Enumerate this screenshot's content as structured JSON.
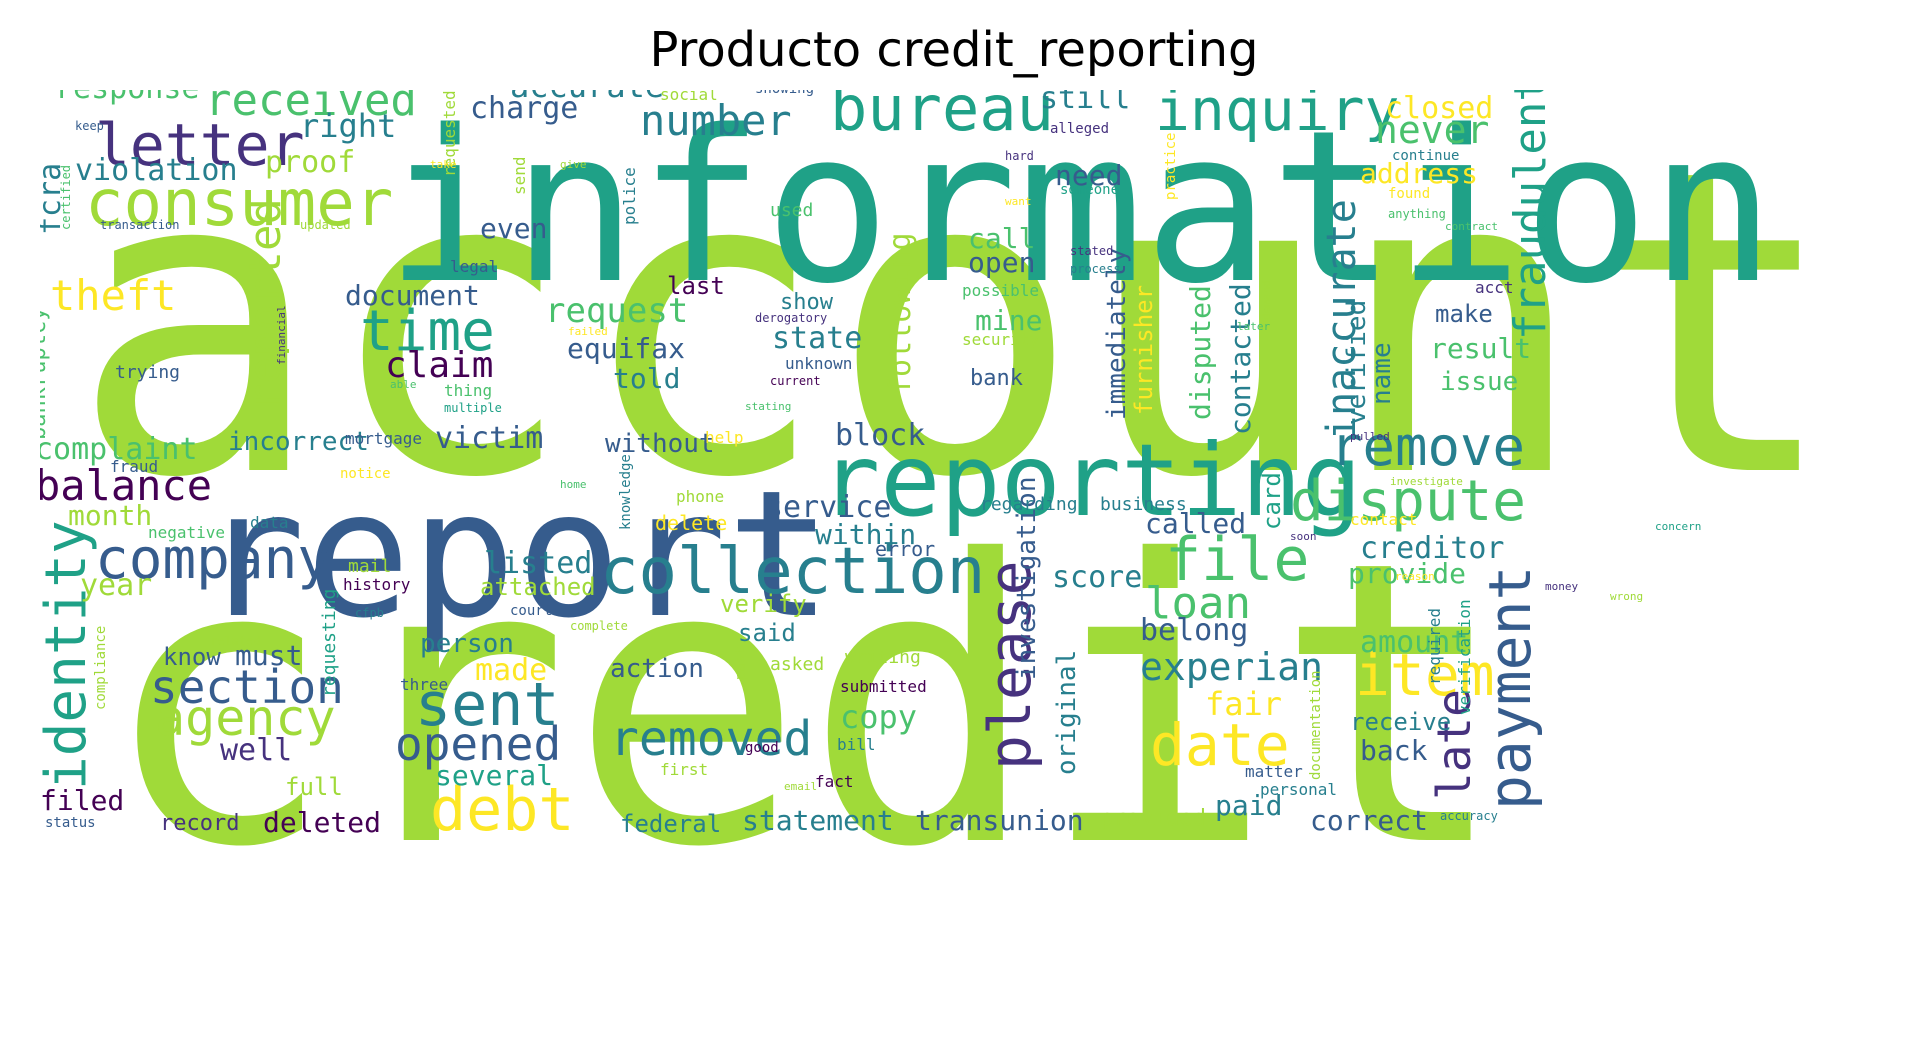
{
  "figure": {
    "title": "Producto credit_reporting",
    "palette": [
      "#440154",
      "#46327e",
      "#365c8d",
      "#277f8e",
      "#1fa187",
      "#4ac16d",
      "#a0da39",
      "#fde725"
    ],
    "words": [
      {
        "t": "account",
        "c": "#a0da39"
      },
      {
        "t": "credit",
        "c": "#a0da39"
      },
      {
        "t": "information",
        "c": "#1fa187"
      },
      {
        "t": "report",
        "c": "#365c8d"
      },
      {
        "t": "reporting",
        "c": "#1fa187"
      },
      {
        "t": "consumer",
        "c": "#a0da39"
      },
      {
        "t": "bureau",
        "c": "#1fa187"
      },
      {
        "t": "inquiry",
        "c": "#1fa187"
      },
      {
        "t": "letter",
        "c": "#46327e"
      },
      {
        "t": "received",
        "c": "#4ac16d"
      },
      {
        "t": "collection",
        "c": "#277f8e"
      },
      {
        "t": "company",
        "c": "#365c8d"
      },
      {
        "t": "identity",
        "c": "#1fa187"
      },
      {
        "t": "dispute",
        "c": "#4ac16d"
      },
      {
        "t": "file",
        "c": "#4ac16d"
      },
      {
        "t": "remove",
        "c": "#277f8e"
      },
      {
        "t": "time",
        "c": "#1fa187"
      },
      {
        "t": "sent",
        "c": "#277f8e"
      },
      {
        "t": "agency",
        "c": "#a0da39"
      },
      {
        "t": "debt",
        "c": "#fde725"
      },
      {
        "t": "date",
        "c": "#fde725"
      },
      {
        "t": "item",
        "c": "#fde725"
      },
      {
        "t": "payment",
        "c": "#365c8d"
      },
      {
        "t": "please",
        "c": "#46327e"
      },
      {
        "t": "removed",
        "c": "#277f8e"
      },
      {
        "t": "opened",
        "c": "#365c8d"
      },
      {
        "t": "section",
        "c": "#365c8d"
      },
      {
        "t": "balance",
        "c": "#440154"
      },
      {
        "t": "fraudulent",
        "c": "#1fa187"
      },
      {
        "t": "theft",
        "c": "#fde725"
      },
      {
        "t": "reported",
        "c": "#a0da39"
      },
      {
        "t": "number",
        "c": "#277f8e"
      },
      {
        "t": "never",
        "c": "#4ac16d"
      },
      {
        "t": "loan",
        "c": "#4ac16d"
      },
      {
        "t": "experian",
        "c": "#277f8e"
      },
      {
        "t": "late",
        "c": "#46327e"
      },
      {
        "t": "inaccurate",
        "c": "#277f8e"
      },
      {
        "t": "accurate",
        "c": "#277f8e"
      },
      {
        "t": "response",
        "c": "#4ac16d"
      },
      {
        "t": "right",
        "c": "#277f8e"
      },
      {
        "t": "charge",
        "c": "#365c8d"
      },
      {
        "t": "still",
        "c": "#277f8e"
      },
      {
        "t": "closed",
        "c": "#fde725"
      },
      {
        "t": "violation",
        "c": "#277f8e"
      },
      {
        "t": "proof",
        "c": "#a0da39"
      },
      {
        "t": "need",
        "c": "#365c8d"
      },
      {
        "t": "address",
        "c": "#fde725"
      },
      {
        "t": "fcra",
        "c": "#277f8e"
      },
      {
        "t": "even",
        "c": "#365c8d"
      },
      {
        "t": "call",
        "c": "#4ac16d"
      },
      {
        "t": "open",
        "c": "#365c8d"
      },
      {
        "t": "document",
        "c": "#365c8d"
      },
      {
        "t": "request",
        "c": "#4ac16d"
      },
      {
        "t": "last",
        "c": "#440154"
      },
      {
        "t": "show",
        "c": "#277f8e"
      },
      {
        "t": "state",
        "c": "#277f8e"
      },
      {
        "t": "claim",
        "c": "#440154"
      },
      {
        "t": "equifax",
        "c": "#365c8d"
      },
      {
        "t": "told",
        "c": "#277f8e"
      },
      {
        "t": "mine",
        "c": "#4ac16d"
      },
      {
        "t": "bank",
        "c": "#365c8d"
      },
      {
        "t": "result",
        "c": "#4ac16d"
      },
      {
        "t": "issue",
        "c": "#4ac16d"
      },
      {
        "t": "make",
        "c": "#365c8d"
      },
      {
        "t": "name",
        "c": "#277f8e"
      },
      {
        "t": "verified",
        "c": "#277f8e"
      },
      {
        "t": "disputed",
        "c": "#4ac16d"
      },
      {
        "t": "contacted",
        "c": "#277f8e"
      },
      {
        "t": "immediately",
        "c": "#365c8d"
      },
      {
        "t": "furnisher",
        "c": "#fde725"
      },
      {
        "t": "following",
        "c": "#a0da39"
      },
      {
        "t": "complaint",
        "c": "#4ac16d"
      },
      {
        "t": "incorrect",
        "c": "#277f8e"
      },
      {
        "t": "victim",
        "c": "#365c8d"
      },
      {
        "t": "block",
        "c": "#365c8d"
      },
      {
        "t": "without",
        "c": "#365c8d"
      },
      {
        "t": "month",
        "c": "#a0da39"
      },
      {
        "t": "service",
        "c": "#365c8d"
      },
      {
        "t": "within",
        "c": "#277f8e"
      },
      {
        "t": "called",
        "c": "#365c8d"
      },
      {
        "t": "card",
        "c": "#1fa187"
      },
      {
        "t": "creditor",
        "c": "#277f8e"
      },
      {
        "t": "provide",
        "c": "#4ac16d"
      },
      {
        "t": "year",
        "c": "#a0da39"
      },
      {
        "t": "listed",
        "c": "#277f8e"
      },
      {
        "t": "attached",
        "c": "#a0da39"
      },
      {
        "t": "score",
        "c": "#277f8e"
      },
      {
        "t": "belong",
        "c": "#365c8d"
      },
      {
        "t": "amount",
        "c": "#4ac16d"
      },
      {
        "t": "must",
        "c": "#365c8d"
      },
      {
        "t": "know",
        "c": "#365c8d"
      },
      {
        "t": "person",
        "c": "#277f8e"
      },
      {
        "t": "made",
        "c": "#fde725"
      },
      {
        "t": "action",
        "c": "#365c8d"
      },
      {
        "t": "said",
        "c": "#277f8e"
      },
      {
        "t": "verify",
        "c": "#a0da39"
      },
      {
        "t": "well",
        "c": "#46327e"
      },
      {
        "t": "copy",
        "c": "#4ac16d"
      },
      {
        "t": "fair",
        "c": "#fde725"
      },
      {
        "t": "investigation",
        "c": "#365c8d"
      },
      {
        "t": "original",
        "c": "#277f8e"
      },
      {
        "t": "receive",
        "c": "#277f8e"
      },
      {
        "t": "back",
        "c": "#365c8d"
      },
      {
        "t": "several",
        "c": "#1fa187"
      },
      {
        "t": "filed",
        "c": "#440154"
      },
      {
        "t": "full",
        "c": "#a0da39"
      },
      {
        "t": "deleted",
        "c": "#440154"
      },
      {
        "t": "record",
        "c": "#46327e"
      },
      {
        "t": "federal",
        "c": "#277f8e"
      },
      {
        "t": "statement",
        "c": "#277f8e"
      },
      {
        "t": "transunion",
        "c": "#365c8d"
      },
      {
        "t": "provided",
        "c": "#a0da39"
      },
      {
        "t": "paid",
        "c": "#277f8e"
      },
      {
        "t": "correct",
        "c": "#365c8d"
      },
      {
        "t": "bankruptcy",
        "c": "#4ac16d"
      },
      {
        "t": "delete",
        "c": "#fde725"
      },
      {
        "t": "phone",
        "c": "#a0da39"
      },
      {
        "t": "requesting",
        "c": "#1fa187"
      },
      {
        "t": "mail",
        "c": "#a0da39"
      },
      {
        "t": "history",
        "c": "#440154"
      },
      {
        "t": "court",
        "c": "#365c8d"
      },
      {
        "t": "error",
        "c": "#365c8d"
      },
      {
        "t": "regarding",
        "c": "#277f8e"
      },
      {
        "t": "business",
        "c": "#277f8e"
      },
      {
        "t": "negative",
        "c": "#4ac16d"
      },
      {
        "t": "data",
        "c": "#277f8e"
      },
      {
        "t": "fraud",
        "c": "#365c8d"
      },
      {
        "t": "mortgage",
        "c": "#365c8d"
      },
      {
        "t": "thing",
        "c": "#4ac16d"
      },
      {
        "t": "multiple",
        "c": "#1fa187"
      },
      {
        "t": "trying",
        "c": "#365c8d"
      },
      {
        "t": "legal",
        "c": "#365c8d"
      },
      {
        "t": "social",
        "c": "#a0da39"
      },
      {
        "t": "showing",
        "c": "#365c8d"
      },
      {
        "t": "alleged",
        "c": "#46327e"
      },
      {
        "t": "continue",
        "c": "#277f8e"
      },
      {
        "t": "found",
        "c": "#fde725"
      },
      {
        "t": "anything",
        "c": "#4ac16d"
      },
      {
        "t": "requested",
        "c": "#a0da39"
      },
      {
        "t": "send",
        "c": "#a0da39"
      },
      {
        "t": "police",
        "c": "#277f8e"
      },
      {
        "t": "someone",
        "c": "#1fa187"
      },
      {
        "t": "practice",
        "c": "#fde725"
      },
      {
        "t": "used",
        "c": "#4ac16d"
      },
      {
        "t": "possible",
        "c": "#4ac16d"
      },
      {
        "t": "security",
        "c": "#a0da39"
      },
      {
        "t": "unknown",
        "c": "#365c8d"
      },
      {
        "t": "current",
        "c": "#440154"
      },
      {
        "t": "derogatory",
        "c": "#46327e"
      },
      {
        "t": "stated",
        "c": "#46327e"
      },
      {
        "t": "process",
        "c": "#277f8e"
      },
      {
        "t": "acct",
        "c": "#46327e"
      },
      {
        "t": "knowledge",
        "c": "#277f8e"
      },
      {
        "t": "help",
        "c": "#fde725"
      },
      {
        "t": "asked",
        "c": "#a0da39"
      },
      {
        "t": "writing",
        "c": "#a0da39"
      },
      {
        "t": "submitted",
        "c": "#440154"
      },
      {
        "t": "bill",
        "c": "#277f8e"
      },
      {
        "t": "fact",
        "c": "#440154"
      },
      {
        "t": "matter",
        "c": "#365c8d"
      },
      {
        "t": "personal",
        "c": "#277f8e"
      },
      {
        "t": "required",
        "c": "#277f8e"
      },
      {
        "t": "verification",
        "c": "#1fa187"
      },
      {
        "t": "documentation",
        "c": "#a0da39"
      },
      {
        "t": "status",
        "c": "#365c8d"
      },
      {
        "t": "compliance",
        "c": "#a0da39"
      },
      {
        "t": "three",
        "c": "#365c8d"
      },
      {
        "t": "cfpb",
        "c": "#277f8e"
      },
      {
        "t": "related",
        "c": "#a0da39"
      },
      {
        "t": "complete",
        "c": "#a0da39"
      },
      {
        "t": "first",
        "c": "#a0da39"
      },
      {
        "t": "good",
        "c": "#440154"
      },
      {
        "t": "past",
        "c": "#a0da39"
      },
      {
        "t": "email",
        "c": "#a0da39"
      },
      {
        "t": "accuracy",
        "c": "#277f8e"
      },
      {
        "t": "transaction",
        "c": "#365c8d"
      },
      {
        "t": "updated",
        "c": "#a0da39"
      },
      {
        "t": "certified",
        "c": "#4ac16d"
      },
      {
        "t": "keep",
        "c": "#365c8d"
      },
      {
        "t": "take",
        "c": "#fde725"
      },
      {
        "t": "give",
        "c": "#a0da39"
      },
      {
        "t": "hard",
        "c": "#46327e"
      },
      {
        "t": "want",
        "c": "#fde725"
      },
      {
        "t": "contract",
        "c": "#4ac16d"
      },
      {
        "t": "demand",
        "c": "#a0da39"
      },
      {
        "t": "later",
        "c": "#4ac16d"
      },
      {
        "t": "failed",
        "c": "#fde725"
      },
      {
        "t": "financial",
        "c": "#46327e"
      },
      {
        "t": "able",
        "c": "#4ac16d"
      },
      {
        "t": "stating",
        "c": "#4ac16d"
      },
      {
        "t": "notice",
        "c": "#fde725"
      },
      {
        "t": "home",
        "c": "#4ac16d"
      },
      {
        "t": "soon",
        "c": "#46327e"
      },
      {
        "t": "pulled",
        "c": "#46327e"
      },
      {
        "t": "investigate",
        "c": "#a0da39"
      },
      {
        "t": "concern",
        "c": "#1fa187"
      },
      {
        "t": "contact",
        "c": "#fde725"
      },
      {
        "t": "reason",
        "c": "#fde725"
      },
      {
        "t": "money",
        "c": "#46327e"
      },
      {
        "t": "wrong",
        "c": "#a0da39"
      }
    ]
  }
}
